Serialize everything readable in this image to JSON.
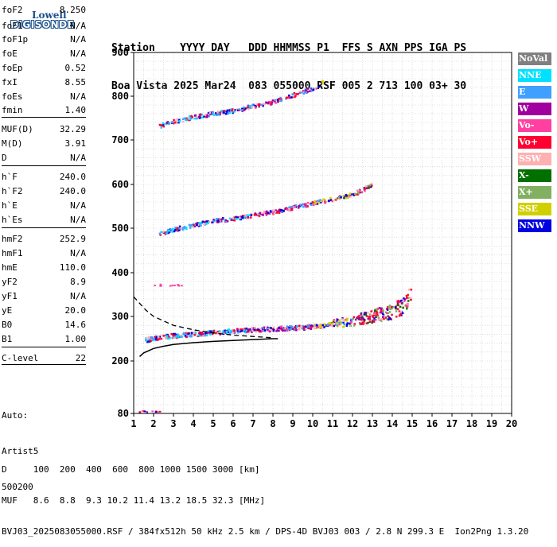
{
  "logo": {
    "line1": "Lowell",
    "line2": "DIGISONDE"
  },
  "header": {
    "row1": "Station    YYYY DAY   DDD HHMMSS P1  FFS S AXN PPS IGA PS",
    "row2": "Boa Vista 2025 Mar24  083 055000 RSF 005 2 713 100 03+ 30"
  },
  "params": [
    {
      "name": "foF2",
      "value": "8.250"
    },
    {
      "name": "foF1",
      "value": "N/A"
    },
    {
      "name": "foF1p",
      "value": "N/A"
    },
    {
      "name": "foE",
      "value": "N/A"
    },
    {
      "name": "foEp",
      "value": "0.52"
    },
    {
      "name": "fxI",
      "value": "8.55"
    },
    {
      "name": "foEs",
      "value": "N/A"
    },
    {
      "name": "fmin",
      "value": "1.40"
    },
    {
      "name": "MUF(D)",
      "value": "32.29"
    },
    {
      "name": "M(D)",
      "value": "3.91"
    },
    {
      "name": "D",
      "value": "N/A"
    },
    {
      "name": "h`F",
      "value": "240.0"
    },
    {
      "name": "h`F2",
      "value": "240.0"
    },
    {
      "name": "h`E",
      "value": "N/A"
    },
    {
      "name": "h`Es",
      "value": "N/A"
    },
    {
      "name": "hmF2",
      "value": "252.9"
    },
    {
      "name": "hmF1",
      "value": "N/A"
    },
    {
      "name": "hmE",
      "value": "110.0"
    },
    {
      "name": "yF2",
      "value": "8.9"
    },
    {
      "name": "yF1",
      "value": "N/A"
    },
    {
      "name": "yE",
      "value": "20.0"
    },
    {
      "name": "B0",
      "value": "14.6"
    },
    {
      "name": "B1",
      "value": "1.00"
    },
    {
      "name": "C-level",
      "value": "22"
    }
  ],
  "auto": {
    "line1": "Auto:",
    "line2": "Artist5",
    "line3": "500200"
  },
  "footer": {
    "row1": "D     100  200  400  600  800 1000 1500 3000 [km]",
    "row2": "MUF   8.6  8.8  9.3 10.2 11.4 13.2 18.5 32.3 [MHz]",
    "row3": "BVJ03_2025083055000.RSF / 384fx512h 50 kHz 2.5 km / DPS-4D BVJ03 003 / 2.8 N 299.3 E  Ion2Png 1.3.20"
  },
  "legend": [
    {
      "label": "NoVal",
      "color": "#808080"
    },
    {
      "label": "NNE",
      "color": "#00e0ff"
    },
    {
      "label": "E",
      "color": "#40a0ff"
    },
    {
      "label": "W",
      "color": "#a000a0"
    },
    {
      "label": "Vo-",
      "color": "#ff40a0"
    },
    {
      "label": "Vo+",
      "color": "#ff0030"
    },
    {
      "label": "SSW",
      "color": "#ffb0b0"
    },
    {
      "label": "X-",
      "color": "#007000"
    },
    {
      "label": "X+",
      "color": "#80b060"
    },
    {
      "label": "SSE",
      "color": "#d0d000"
    },
    {
      "label": "NNW",
      "color": "#0000e0"
    }
  ],
  "chart_data": {
    "type": "scatter",
    "xlim": [
      1,
      20
    ],
    "ylim": [
      80,
      900
    ],
    "xticks": [
      "1",
      "2",
      "3",
      "4",
      "5",
      "6",
      "7",
      "8",
      "9",
      "10",
      "11",
      "12",
      "13",
      "14",
      "15",
      "16",
      "17",
      "18",
      "19",
      "20"
    ],
    "yticks": [
      "80",
      "200",
      "300",
      "400",
      "500",
      "600",
      "700",
      "800",
      "900"
    ],
    "traces": [
      {
        "name": "F2 1st hop",
        "x": [
          1.6,
          2,
          3,
          4,
          5,
          6,
          7,
          8,
          9,
          10,
          11,
          12,
          13,
          13.5,
          14,
          14.5,
          14.8,
          15
        ],
        "y": [
          245,
          248,
          255,
          258,
          262,
          265,
          268,
          270,
          272,
          275,
          280,
          285,
          295,
          300,
          305,
          315,
          330,
          360
        ]
      },
      {
        "name": "F2 2nd hop",
        "x": [
          2.3,
          3,
          4,
          5,
          6,
          7,
          8,
          9,
          10,
          11,
          12,
          12.5,
          13
        ],
        "y": [
          485,
          495,
          505,
          515,
          520,
          528,
          535,
          545,
          555,
          565,
          575,
          585,
          600
        ]
      },
      {
        "name": "F2 3rd hop",
        "x": [
          2.3,
          3,
          4,
          5,
          6,
          7,
          8,
          9,
          10,
          10.5
        ],
        "y": [
          730,
          740,
          750,
          758,
          765,
          775,
          785,
          800,
          815,
          830
        ]
      }
    ],
    "profile_solid": {
      "x": [
        1.3,
        1.5,
        2,
        2.5,
        3,
        4,
        5,
        6,
        7,
        8,
        8.25
      ],
      "y": [
        210,
        218,
        228,
        233,
        237,
        241,
        244,
        246,
        248,
        250,
        250
      ]
    },
    "profile_dashed": {
      "x": [
        1,
        1.3,
        1.6,
        2,
        2.5,
        3,
        4,
        5,
        6,
        7,
        8
      ],
      "y": [
        345,
        330,
        315,
        300,
        290,
        280,
        270,
        263,
        258,
        255,
        252
      ]
    }
  }
}
